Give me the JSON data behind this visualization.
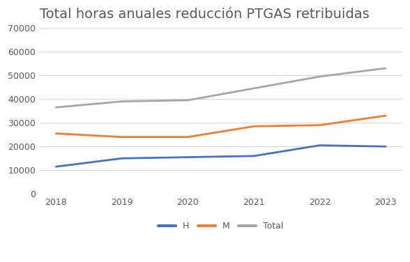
{
  "title": "Total horas anuales reducción PTGAS retribuidas",
  "years": [
    2018,
    2019,
    2020,
    2021,
    2022,
    2023
  ],
  "series": {
    "H": [
      11500,
      15000,
      15500,
      16000,
      20500,
      20000
    ],
    "M": [
      25500,
      24000,
      24000,
      28500,
      29000,
      33000
    ],
    "Total": [
      36500,
      39000,
      39500,
      44500,
      49500,
      53000
    ]
  },
  "colors": {
    "H": "#4472c4",
    "M": "#ed7d31",
    "Total": "#a5a5a5"
  },
  "ylim": [
    0,
    70000
  ],
  "yticks": [
    0,
    10000,
    20000,
    30000,
    40000,
    50000,
    60000,
    70000
  ],
  "background_color": "#ffffff",
  "plot_bg_color": "#ffffff",
  "title_fontsize": 14,
  "title_color": "#595959",
  "legend_fontsize": 9,
  "tick_fontsize": 9,
  "tick_color": "#595959",
  "line_width": 2.0,
  "grid_color": "#d9d9d9"
}
